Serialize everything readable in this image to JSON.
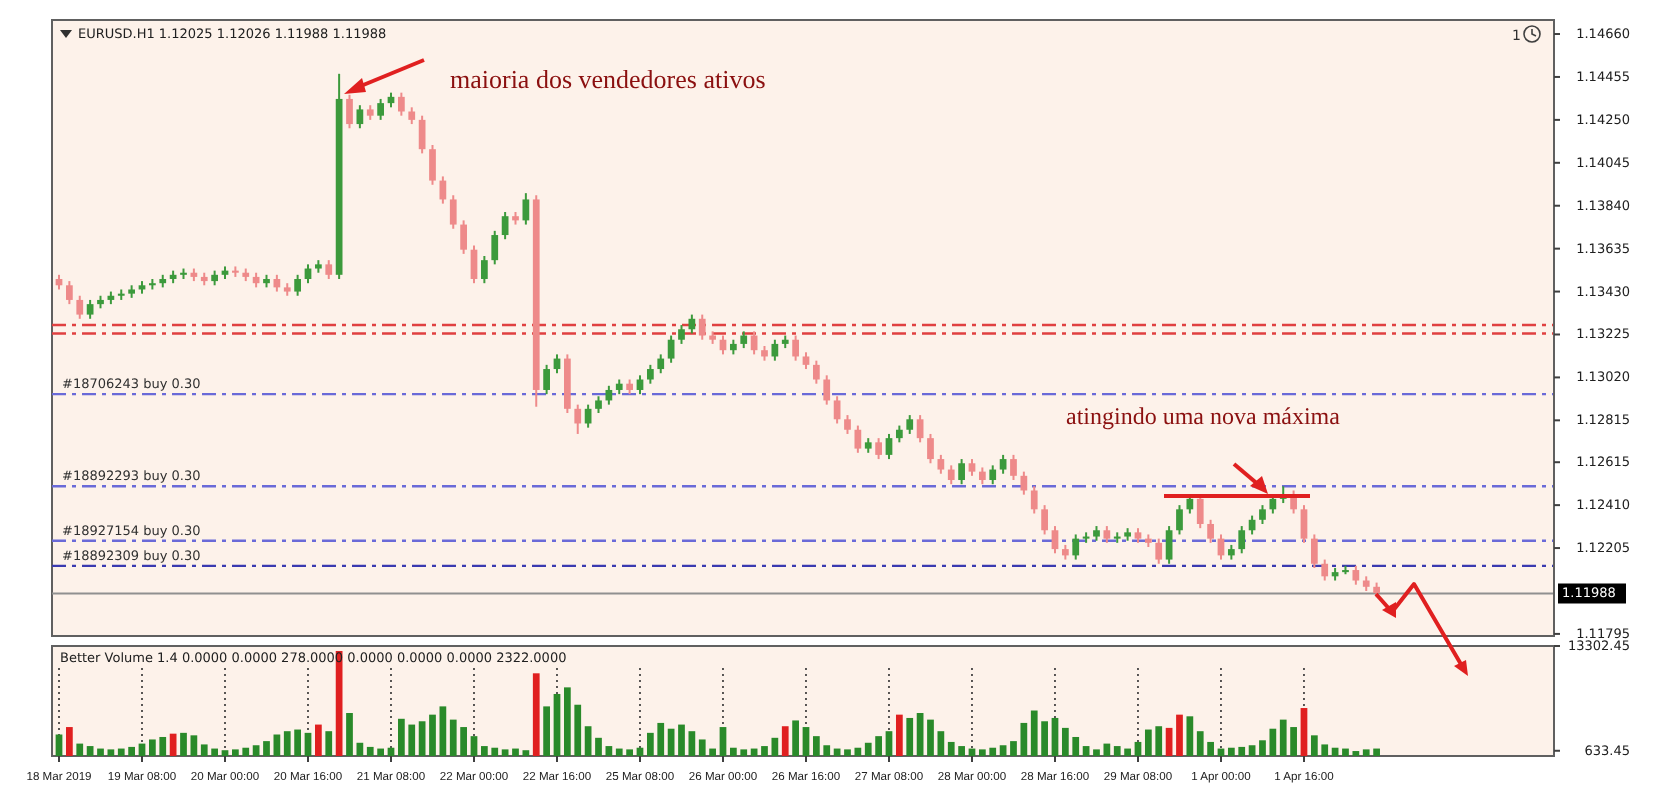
{
  "chart_data": [
    {
      "type": "candlestick",
      "title": "EURUSD.H1 1.12025 1.12026 1.11988 1.11988",
      "categories": [
        null,
        null,
        null,
        null,
        null,
        null,
        null,
        null,
        null,
        null,
        null,
        null,
        null,
        null,
        null,
        null,
        null,
        null,
        null,
        null,
        null,
        null,
        null,
        null,
        null,
        null,
        null,
        null,
        null,
        null,
        null,
        null,
        null,
        null,
        null,
        null,
        null,
        null,
        null,
        null,
        null,
        null,
        null,
        null,
        null,
        null,
        null,
        null,
        null,
        null,
        null,
        null,
        null,
        null,
        null,
        null,
        null,
        null,
        null,
        null,
        null,
        null,
        null,
        null,
        null,
        null,
        null,
        null,
        null,
        null,
        null,
        null,
        null,
        null,
        null,
        null,
        null,
        null,
        null,
        null,
        null,
        null,
        null,
        null,
        null,
        null,
        null,
        null,
        null,
        null,
        null,
        null,
        null,
        null,
        null,
        null,
        null,
        null,
        null,
        null,
        null,
        null,
        null,
        null,
        null,
        null,
        null,
        null,
        null,
        null,
        null,
        null,
        null,
        null,
        null,
        null,
        null,
        null,
        null,
        null,
        null,
        null,
        null,
        null,
        null,
        null,
        null,
        null,
        null,
        null,
        null,
        null,
        null,
        null,
        null,
        null,
        null,
        null,
        null,
        null,
        null,
        null,
        null,
        null
      ],
      "ohlc": [
        [
          1.1349,
          1.1351,
          1.1344,
          1.1346
        ],
        [
          1.1346,
          1.1348,
          1.1337,
          1.1339
        ],
        [
          1.1339,
          1.1341,
          1.133,
          1.1332
        ],
        [
          1.1332,
          1.1339,
          1.133,
          1.1337
        ],
        [
          1.1337,
          1.1341,
          1.1335,
          1.1339
        ],
        [
          1.1339,
          1.1343,
          1.1337,
          1.1341
        ],
        [
          1.1341,
          1.1344,
          1.1339,
          1.1342
        ],
        [
          1.1342,
          1.1346,
          1.134,
          1.1344
        ],
        [
          1.1344,
          1.1348,
          1.1342,
          1.1346
        ],
        [
          1.1346,
          1.1349,
          1.1344,
          1.1347
        ],
        [
          1.1347,
          1.1351,
          1.1345,
          1.1349
        ],
        [
          1.1349,
          1.1353,
          1.1347,
          1.1351
        ],
        [
          1.1351,
          1.1354,
          1.1349,
          1.1352
        ],
        [
          1.1352,
          1.1354,
          1.1348,
          1.135
        ],
        [
          1.135,
          1.1352,
          1.1346,
          1.1348
        ],
        [
          1.1348,
          1.1353,
          1.1346,
          1.1351
        ],
        [
          1.1351,
          1.1355,
          1.1349,
          1.1353
        ],
        [
          1.1353,
          1.1355,
          1.135,
          1.1352
        ],
        [
          1.1352,
          1.1354,
          1.1348,
          1.135
        ],
        [
          1.135,
          1.1352,
          1.1345,
          1.1347
        ],
        [
          1.1347,
          1.1351,
          1.1345,
          1.1349
        ],
        [
          1.1349,
          1.1351,
          1.1343,
          1.1345
        ],
        [
          1.1345,
          1.1347,
          1.1341,
          1.1343
        ],
        [
          1.1343,
          1.1351,
          1.1341,
          1.1349
        ],
        [
          1.1349,
          1.1356,
          1.1347,
          1.1354
        ],
        [
          1.1354,
          1.1358,
          1.1352,
          1.1356
        ],
        [
          1.1356,
          1.1358,
          1.1349,
          1.1351
        ],
        [
          1.1351,
          1.1447,
          1.1349,
          1.1435
        ],
        [
          1.1435,
          1.1437,
          1.1421,
          1.1423
        ],
        [
          1.1423,
          1.1432,
          1.1421,
          1.143
        ],
        [
          1.143,
          1.1432,
          1.1425,
          1.1427
        ],
        [
          1.1427,
          1.1435,
          1.1425,
          1.1433
        ],
        [
          1.1433,
          1.1438,
          1.1431,
          1.1436
        ],
        [
          1.1436,
          1.1438,
          1.1427,
          1.1429
        ],
        [
          1.1429,
          1.1431,
          1.1423,
          1.1425
        ],
        [
          1.1425,
          1.1427,
          1.1409,
          1.1411
        ],
        [
          1.1411,
          1.1413,
          1.1394,
          1.1396
        ],
        [
          1.1396,
          1.1398,
          1.1385,
          1.1387
        ],
        [
          1.1387,
          1.1389,
          1.1373,
          1.1375
        ],
        [
          1.1375,
          1.1377,
          1.1361,
          1.1363
        ],
        [
          1.1363,
          1.1365,
          1.1347,
          1.1349
        ],
        [
          1.1349,
          1.136,
          1.1347,
          1.1358
        ],
        [
          1.1358,
          1.1372,
          1.1356,
          1.137
        ],
        [
          1.137,
          1.1381,
          1.1368,
          1.1379
        ],
        [
          1.1379,
          1.1381,
          1.1375,
          1.1377
        ],
        [
          1.1377,
          1.139,
          1.1375,
          1.1387
        ],
        [
          1.1387,
          1.1389,
          1.1288,
          1.1296
        ],
        [
          1.1296,
          1.1308,
          1.1294,
          1.1306
        ],
        [
          1.1306,
          1.1313,
          1.1304,
          1.1311
        ],
        [
          1.1311,
          1.1313,
          1.1285,
          1.1287
        ],
        [
          1.1287,
          1.1289,
          1.1275,
          1.128
        ],
        [
          1.128,
          1.1289,
          1.1278,
          1.1287
        ],
        [
          1.1287,
          1.1293,
          1.1285,
          1.1291
        ],
        [
          1.1291,
          1.1298,
          1.1289,
          1.1296
        ],
        [
          1.1296,
          1.1301,
          1.1294,
          1.1299
        ],
        [
          1.1299,
          1.1301,
          1.1294,
          1.1296
        ],
        [
          1.1296,
          1.1303,
          1.1294,
          1.1301
        ],
        [
          1.1301,
          1.1308,
          1.1299,
          1.1306
        ],
        [
          1.1306,
          1.1313,
          1.1304,
          1.1311
        ],
        [
          1.1311,
          1.1322,
          1.1309,
          1.132
        ],
        [
          1.132,
          1.1327,
          1.1318,
          1.1325
        ],
        [
          1.1325,
          1.1332,
          1.1323,
          1.133
        ],
        [
          1.133,
          1.1332,
          1.132,
          1.1322
        ],
        [
          1.1322,
          1.1324,
          1.1318,
          1.132
        ],
        [
          1.132,
          1.1322,
          1.1313,
          1.1315
        ],
        [
          1.1315,
          1.132,
          1.1313,
          1.1318
        ],
        [
          1.1318,
          1.1324,
          1.1316,
          1.1322
        ],
        [
          1.1322,
          1.1324,
          1.1313,
          1.1315
        ],
        [
          1.1315,
          1.1317,
          1.131,
          1.1312
        ],
        [
          1.1312,
          1.132,
          1.131,
          1.1318
        ],
        [
          1.1318,
          1.1322,
          1.1316,
          1.132
        ],
        [
          1.132,
          1.1322,
          1.131,
          1.1312
        ],
        [
          1.1312,
          1.1314,
          1.1306,
          1.1308
        ],
        [
          1.1308,
          1.131,
          1.1299,
          1.1301
        ],
        [
          1.1301,
          1.1303,
          1.1289,
          1.1291
        ],
        [
          1.1291,
          1.1293,
          1.128,
          1.1282
        ],
        [
          1.1282,
          1.1284,
          1.1275,
          1.1277
        ],
        [
          1.1277,
          1.1279,
          1.1266,
          1.1268
        ],
        [
          1.1268,
          1.1273,
          1.1266,
          1.1271
        ],
        [
          1.1271,
          1.1273,
          1.1263,
          1.1265
        ],
        [
          1.1265,
          1.1275,
          1.1263,
          1.1273
        ],
        [
          1.1273,
          1.1279,
          1.1271,
          1.1277
        ],
        [
          1.1277,
          1.1284,
          1.1275,
          1.1282
        ],
        [
          1.1282,
          1.1284,
          1.1271,
          1.1273
        ],
        [
          1.1273,
          1.1275,
          1.1261,
          1.1263
        ],
        [
          1.1263,
          1.1265,
          1.1256,
          1.1258
        ],
        [
          1.1258,
          1.126,
          1.1251,
          1.1253
        ],
        [
          1.1253,
          1.1263,
          1.1251,
          1.1261
        ],
        [
          1.1261,
          1.1263,
          1.1255,
          1.1257
        ],
        [
          1.1257,
          1.1259,
          1.1251,
          1.1253
        ],
        [
          1.1253,
          1.126,
          1.1251,
          1.1258
        ],
        [
          1.1258,
          1.1265,
          1.1256,
          1.1263
        ],
        [
          1.1263,
          1.1265,
          1.1253,
          1.1255
        ],
        [
          1.1255,
          1.1257,
          1.1246,
          1.1248
        ],
        [
          1.1248,
          1.125,
          1.1237,
          1.1239
        ],
        [
          1.1239,
          1.1241,
          1.1227,
          1.1229
        ],
        [
          1.1229,
          1.1231,
          1.1218,
          1.122
        ],
        [
          1.122,
          1.1222,
          1.1215,
          1.1217
        ],
        [
          1.1217,
          1.1227,
          1.1215,
          1.1225
        ],
        [
          1.1225,
          1.1228,
          1.1223,
          1.1226
        ],
        [
          1.1226,
          1.1231,
          1.1224,
          1.1229
        ],
        [
          1.1229,
          1.1231,
          1.1223,
          1.1225
        ],
        [
          1.1225,
          1.1228,
          1.1223,
          1.1226
        ],
        [
          1.1226,
          1.123,
          1.1224,
          1.1228
        ],
        [
          1.1228,
          1.123,
          1.1223,
          1.1225
        ],
        [
          1.1225,
          1.1227,
          1.1221,
          1.1223
        ],
        [
          1.1223,
          1.1225,
          1.1213,
          1.1215
        ],
        [
          1.1215,
          1.1231,
          1.1213,
          1.1229
        ],
        [
          1.1229,
          1.1241,
          1.1227,
          1.1239
        ],
        [
          1.1239,
          1.1246,
          1.1237,
          1.1244
        ],
        [
          1.1244,
          1.1246,
          1.123,
          1.1232
        ],
        [
          1.1232,
          1.1234,
          1.1223,
          1.1225
        ],
        [
          1.1225,
          1.1227,
          1.1215,
          1.1217
        ],
        [
          1.1217,
          1.1222,
          1.1215,
          1.122
        ],
        [
          1.122,
          1.1231,
          1.1218,
          1.1229
        ],
        [
          1.1229,
          1.1236,
          1.1227,
          1.1234
        ],
        [
          1.1234,
          1.1241,
          1.1232,
          1.1239
        ],
        [
          1.1239,
          1.1246,
          1.1237,
          1.1244
        ],
        [
          1.1244,
          1.125,
          1.1242,
          1.1246
        ],
        [
          1.1246,
          1.1248,
          1.1237,
          1.1239
        ],
        [
          1.1239,
          1.1241,
          1.1223,
          1.1225
        ],
        [
          1.1225,
          1.1227,
          1.1211,
          1.1213
        ],
        [
          1.1213,
          1.1215,
          1.1205,
          1.1207
        ],
        [
          1.1207,
          1.1211,
          1.1205,
          1.1209
        ],
        [
          1.1209,
          1.1212,
          1.1208,
          1.121
        ],
        [
          1.121,
          1.1212,
          1.1203,
          1.1205
        ],
        [
          1.1205,
          1.1207,
          1.12,
          1.1202
        ],
        [
          1.1202,
          1.1204,
          1.1197,
          1.1199
        ],
        null,
        null,
        null,
        null,
        null,
        null,
        null,
        null,
        null,
        null,
        null,
        null,
        null,
        null,
        null,
        null
      ],
      "colors": [
        "#ee8a8a",
        "#ee8a8a",
        "#ee8a8a",
        "#3c9a3c",
        "#3c9a3c",
        "#3c9a3c",
        "#3c9a3c",
        "#3c9a3c",
        "#3c9a3c",
        "#3c9a3c",
        "#3c9a3c",
        "#3c9a3c",
        "#3c9a3c",
        "#ee8a8a",
        "#ee8a8a",
        "#3c9a3c",
        "#3c9a3c",
        "#ee8a8a",
        "#ee8a8a",
        "#ee8a8a",
        "#3c9a3c",
        "#ee8a8a",
        "#ee8a8a",
        "#3c9a3c",
        "#3c9a3c",
        "#3c9a3c",
        "#ee8a8a",
        "#3c9a3c",
        "#ee8a8a",
        "#3c9a3c",
        "#ee8a8a",
        "#3c9a3c",
        "#3c9a3c",
        "#ee8a8a",
        "#ee8a8a",
        "#ee8a8a",
        "#ee8a8a",
        "#ee8a8a",
        "#ee8a8a",
        "#ee8a8a",
        "#ee8a8a",
        "#3c9a3c",
        "#3c9a3c",
        "#3c9a3c",
        "#ee8a8a",
        "#3c9a3c",
        "#ee8a8a",
        "#3c9a3c",
        "#3c9a3c",
        "#ee8a8a",
        "#ee8a8a",
        "#3c9a3c",
        "#3c9a3c",
        "#3c9a3c",
        "#3c9a3c",
        "#ee8a8a",
        "#3c9a3c",
        "#3c9a3c",
        "#3c9a3c",
        "#3c9a3c",
        "#3c9a3c",
        "#3c9a3c",
        "#ee8a8a",
        "#ee8a8a",
        "#ee8a8a",
        "#3c9a3c",
        "#3c9a3c",
        "#ee8a8a",
        "#ee8a8a",
        "#3c9a3c",
        "#3c9a3c",
        "#ee8a8a",
        "#ee8a8a",
        "#ee8a8a",
        "#ee8a8a",
        "#ee8a8a",
        "#ee8a8a",
        "#ee8a8a",
        "#3c9a3c",
        "#ee8a8a",
        "#3c9a3c",
        "#3c9a3c",
        "#3c9a3c",
        "#ee8a8a",
        "#ee8a8a",
        "#ee8a8a",
        "#ee8a8a",
        "#3c9a3c",
        "#ee8a8a",
        "#ee8a8a",
        "#3c9a3c",
        "#3c9a3c",
        "#ee8a8a",
        "#ee8a8a",
        "#ee8a8a",
        "#ee8a8a",
        "#ee8a8a",
        "#ee8a8a",
        "#3c9a3c",
        "#3c9a3c",
        "#3c9a3c",
        "#ee8a8a",
        "#3c9a3c",
        "#3c9a3c",
        "#ee8a8a",
        "#ee8a8a",
        "#ee8a8a",
        "#3c9a3c",
        "#3c9a3c",
        "#3c9a3c",
        "#ee8a8a",
        "#ee8a8a",
        "#ee8a8a",
        "#3c9a3c",
        "#3c9a3c",
        "#3c9a3c",
        "#3c9a3c",
        "#3c9a3c",
        "#3c9a3c",
        "#ee8a8a",
        "#ee8a8a",
        "#ee8a8a",
        "#ee8a8a",
        "#3c9a3c",
        "#3c9a3c",
        "#ee8a8a",
        "#ee8a8a",
        "#ee8a8a",
        null,
        null,
        null,
        null,
        null,
        null,
        null,
        null,
        null,
        null,
        null,
        null,
        null,
        null,
        null,
        null
      ],
      "ylim": [
        1.11785,
        1.14727
      ],
      "yticks": [
        {
          "value": 1.1466,
          "label": "1.14660"
        },
        1.14455,
        {
          "value": 1.1425,
          "label": "1.14250"
        },
        1.14045,
        {
          "value": 1.1384,
          "label": "1.13840"
        },
        1.13635,
        {
          "value": 1.1343,
          "label": "1.13430"
        },
        1.13225,
        {
          "value": 1.1302,
          "label": "1.13020"
        },
        1.12815,
        1.12615,
        {
          "value": 1.1241,
          "label": "1.12410"
        },
        1.12205,
        1.11795
      ],
      "ref_lines": [
        {
          "axis": "y",
          "value": 1.1327,
          "label": null,
          "color": "#e04040",
          "line_style": "dashed"
        },
        {
          "axis": "y",
          "value": 1.1323,
          "label": null,
          "color": "#e04040",
          "line_style": "dashed"
        },
        {
          "axis": "y",
          "value": 1.1294,
          "label": "#18706243 buy 0.30",
          "color": "#6a6ad8",
          "line_style": "dashed"
        },
        {
          "axis": "y",
          "value": 1.125,
          "label": "#18892293 buy 0.30",
          "color": "#6a6ad8",
          "line_style": "dashed"
        },
        {
          "axis": "y",
          "value": 1.1224,
          "label": "#18927154 buy 0.30",
          "color": "#6a6ad8",
          "line_style": "dashed"
        },
        {
          "axis": "y",
          "value": 1.1212,
          "label": "#18892309 buy 0.30",
          "color": "#3a3ab0",
          "line_style": "dashed"
        },
        {
          "axis": "y",
          "value": 1.11988,
          "label": "1.11988",
          "color": "#909090",
          "line_style": "solid"
        }
      ],
      "annotations": [
        "maioria dos vendedores ativos",
        "atingindo uma nova máxima",
        "1"
      ],
      "tick_labels": "y"
    },
    {
      "type": "bar",
      "title": "Better Volume 1.4 0.0000 0.0000 278.0000 0.0000 0.0000 0.0000 2322.0000",
      "categories": [
        "18 Mar 2019",
        null,
        null,
        null,
        null,
        null,
        null,
        null,
        "19 Mar 08:00",
        null,
        null,
        null,
        null,
        null,
        null,
        null,
        "20 Mar 00:00",
        null,
        null,
        null,
        null,
        null,
        null,
        null,
        "20 Mar 16:00",
        null,
        null,
        null,
        null,
        null,
        null,
        null,
        "21 Mar 08:00",
        null,
        null,
        null,
        null,
        null,
        null,
        null,
        "22 Mar 00:00",
        null,
        null,
        null,
        null,
        null,
        null,
        null,
        "22 Mar 16:00",
        null,
        null,
        null,
        null,
        null,
        null,
        null,
        "25 Mar 08:00",
        null,
        null,
        null,
        null,
        null,
        null,
        null,
        "26 Mar 00:00",
        null,
        null,
        null,
        null,
        null,
        null,
        null,
        "26 Mar 16:00",
        null,
        null,
        null,
        null,
        null,
        null,
        null,
        "27 Mar 08:00",
        null,
        null,
        null,
        null,
        null,
        null,
        null,
        "28 Mar 00:00",
        null,
        null,
        null,
        null,
        null,
        null,
        null,
        "28 Mar 16:00",
        null,
        null,
        null,
        null,
        null,
        null,
        null,
        "29 Mar 08:00",
        null,
        null,
        null,
        null,
        null,
        null,
        null,
        "1 Apr 00:00",
        null,
        null,
        null,
        null,
        null,
        null,
        null,
        "1 Apr 16:00",
        null,
        null,
        null,
        null,
        null,
        null,
        null,
        null,
        null,
        null,
        null,
        null,
        null,
        null,
        null,
        null,
        null,
        null,
        null,
        null,
        null,
        null,
        null
      ],
      "values": [
        2600,
        3500,
        1500,
        1200,
        900,
        800,
        900,
        1100,
        1500,
        2000,
        2300,
        2700,
        2800,
        2500,
        1400,
        900,
        700,
        800,
        1000,
        1300,
        1800,
        2600,
        3000,
        3200,
        2800,
        3800,
        3000,
        12700,
        5200,
        1600,
        1100,
        900,
        1000,
        4500,
        3800,
        4200,
        5000,
        6000,
        4400,
        3500,
        2400,
        1200,
        1000,
        800,
        900,
        700,
        10000,
        6000,
        7500,
        8300,
        6200,
        3600,
        2200,
        1200,
        900,
        800,
        1000,
        2800,
        4000,
        3300,
        3800,
        3000,
        2000,
        900,
        3500,
        1000,
        800,
        900,
        1200,
        2200,
        3600,
        4300,
        3500,
        2400,
        1300,
        900,
        800,
        1000,
        1600,
        2400,
        3000,
        5000,
        4600,
        5200,
        4400,
        3000,
        1700,
        1200,
        900,
        800,
        1000,
        1300,
        1800,
        4000,
        5500,
        4200,
        4600,
        3400,
        2300,
        1200,
        800,
        1500,
        1200,
        900,
        1700,
        3200,
        3600,
        3400,
        5000,
        4800,
        3000,
        1700,
        900,
        1000,
        1100,
        1300,
        1900,
        3300,
        4400,
        3500,
        5800,
        2500,
        1400,
        1000,
        900,
        600,
        800,
        900,
        null,
        null,
        null,
        null,
        null,
        null,
        null,
        null,
        null,
        null,
        null,
        null,
        null,
        null,
        null,
        null
      ],
      "colors": [
        "#2a8a2a",
        "#e02020",
        "#2a8a2a",
        "#2a8a2a",
        "#2a8a2a",
        "#2a8a2a",
        "#2a8a2a",
        "#2a8a2a",
        "#2a8a2a",
        "#2a8a2a",
        "#2a8a2a",
        "#e02020",
        "#2a8a2a",
        "#2a8a2a",
        "#2a8a2a",
        "#2a8a2a",
        "#2a8a2a",
        "#2a8a2a",
        "#2a8a2a",
        "#2a8a2a",
        "#2a8a2a",
        "#2a8a2a",
        "#2a8a2a",
        "#2a8a2a",
        "#2a8a2a",
        "#e02020",
        "#2a8a2a",
        "#e02020",
        "#2a8a2a",
        "#2a8a2a",
        "#2a8a2a",
        "#2a8a2a",
        "#2a8a2a",
        "#2a8a2a",
        "#2a8a2a",
        "#2a8a2a",
        "#2a8a2a",
        "#2a8a2a",
        "#2a8a2a",
        "#2a8a2a",
        "#2a8a2a",
        "#2a8a2a",
        "#2a8a2a",
        "#2a8a2a",
        "#2a8a2a",
        "#2a8a2a",
        "#e02020",
        "#2a8a2a",
        "#2a8a2a",
        "#2a8a2a",
        "#2a8a2a",
        "#2a8a2a",
        "#2a8a2a",
        "#2a8a2a",
        "#2a8a2a",
        "#2a8a2a",
        "#2a8a2a",
        "#2a8a2a",
        "#2a8a2a",
        "#2a8a2a",
        "#2a8a2a",
        "#2a8a2a",
        "#2a8a2a",
        "#2a8a2a",
        "#2a8a2a",
        "#2a8a2a",
        "#2a8a2a",
        "#2a8a2a",
        "#2a8a2a",
        "#2a8a2a",
        "#e02020",
        "#2a8a2a",
        "#2a8a2a",
        "#2a8a2a",
        "#2a8a2a",
        "#2a8a2a",
        "#2a8a2a",
        "#2a8a2a",
        "#2a8a2a",
        "#2a8a2a",
        "#2a8a2a",
        "#e02020",
        "#2a8a2a",
        "#2a8a2a",
        "#2a8a2a",
        "#2a8a2a",
        "#2a8a2a",
        "#2a8a2a",
        "#2a8a2a",
        "#2a8a2a",
        "#2a8a2a",
        "#2a8a2a",
        "#2a8a2a",
        "#2a8a2a",
        "#2a8a2a",
        "#2a8a2a",
        "#2a8a2a",
        "#2a8a2a",
        "#2a8a2a",
        "#2a8a2a",
        "#2a8a2a",
        "#2a8a2a",
        "#2a8a2a",
        "#2a8a2a",
        "#2a8a2a",
        "#2a8a2a",
        "#2a8a2a",
        "#e02020",
        "#e02020",
        "#2a8a2a",
        "#2a8a2a",
        "#2a8a2a",
        "#2a8a2a",
        "#2a8a2a",
        "#2a8a2a",
        "#2a8a2a",
        "#2a8a2a",
        "#2a8a2a",
        "#2a8a2a",
        "#2a8a2a",
        "#e02020",
        "#2a8a2a",
        "#2a8a2a",
        "#2a8a2a",
        "#2a8a2a",
        "#2a8a2a",
        "#2a8a2a",
        "#2a8a2a",
        null,
        null,
        null,
        null,
        null,
        null,
        null,
        null,
        null,
        null,
        null,
        null,
        null,
        null,
        null,
        null
      ],
      "ylim": [
        0,
        13302.45
      ],
      "yticks": [
        633.45,
        13302.45
      ],
      "grid": "x"
    }
  ]
}
